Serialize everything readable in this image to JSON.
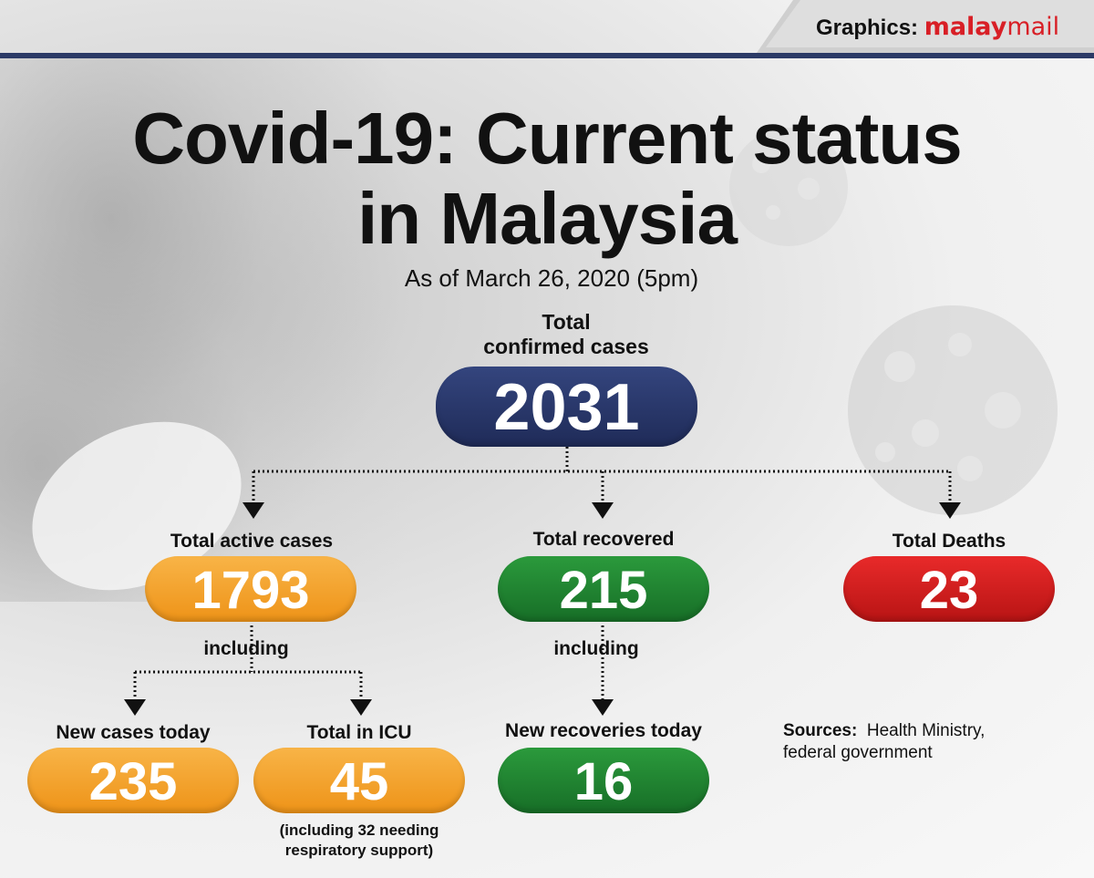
{
  "brand": {
    "prefix": "Graphics:",
    "name_part1": "malay",
    "name_part2": "mail"
  },
  "title": {
    "line1": "Covid-19: Current status",
    "line2": "in Malaysia"
  },
  "subtitle": "As of March 26, 2020 (5pm)",
  "total_confirmed": {
    "label_line1": "Total",
    "label_line2": "confirmed cases",
    "value": "2031"
  },
  "active": {
    "label": "Total active cases",
    "value": "1793",
    "including": "including"
  },
  "recovered": {
    "label": "Total recovered",
    "value": "215",
    "including": "including"
  },
  "deaths": {
    "label": "Total Deaths",
    "value": "23"
  },
  "new_cases": {
    "label": "New cases today",
    "value": "235"
  },
  "icu": {
    "label": "Total in ICU",
    "value": "45",
    "note_line1": "(including 32 needing",
    "note_line2": "respiratory support)"
  },
  "new_recoveries": {
    "label": "New recoveries today",
    "value": "16"
  },
  "sources": {
    "label": "Sources:",
    "text_line1": "Health Ministry,",
    "text_line2": "federal government"
  },
  "colors": {
    "navy": "#2b3a66",
    "orange": "#f2a22b",
    "green": "#1f8131",
    "red": "#d21f1f",
    "brand_red": "#d81f26"
  }
}
